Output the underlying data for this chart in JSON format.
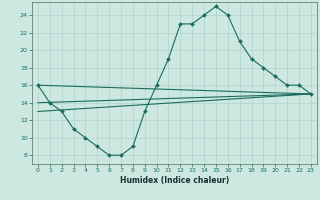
{
  "title": "",
  "xlabel": "Humidex (Indice chaleur)",
  "ylabel": "",
  "xlim": [
    -0.5,
    23.5
  ],
  "ylim": [
    7,
    25.5
  ],
  "xticks": [
    0,
    1,
    2,
    3,
    4,
    5,
    6,
    7,
    8,
    9,
    10,
    11,
    12,
    13,
    14,
    15,
    16,
    17,
    18,
    19,
    20,
    21,
    22,
    23
  ],
  "yticks": [
    8,
    10,
    12,
    14,
    16,
    18,
    20,
    22,
    24
  ],
  "bg_color": "#cce8e0",
  "grid_color": "#b0d4cc",
  "line_color": "#1a6b5e",
  "curve_x": [
    0,
    1,
    2,
    3,
    4,
    5,
    6,
    7,
    8,
    9,
    10,
    11,
    12,
    13,
    14,
    15,
    16,
    17,
    18,
    19,
    20,
    21,
    22,
    23
  ],
  "curve_y": [
    16,
    14,
    13,
    11,
    10,
    9,
    8,
    8,
    9,
    13,
    16,
    19,
    23,
    23,
    24,
    25,
    24,
    21,
    19,
    18,
    17,
    16,
    16,
    15
  ],
  "line3_x0": 0,
  "line3_x1": 23,
  "line3_y0": 16,
  "line3_y1": 15,
  "line4_x0": 0,
  "line4_x1": 23,
  "line4_y0": 14,
  "line4_y1": 15,
  "line5_x0": 0,
  "line5_x1": 23,
  "line5_y0": 13,
  "line5_y1": 15
}
